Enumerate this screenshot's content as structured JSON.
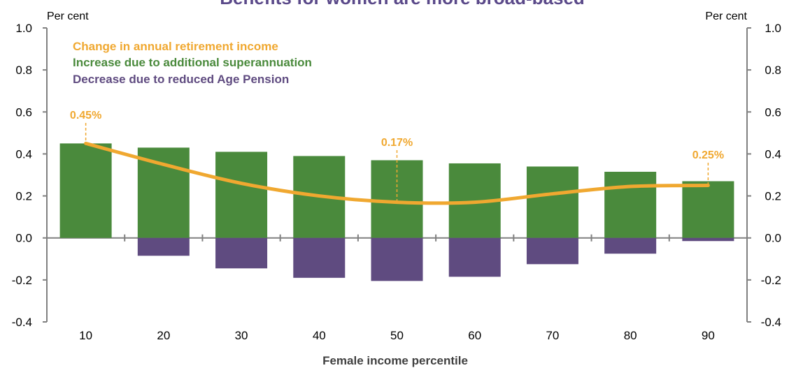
{
  "chart_data": {
    "type": "bar",
    "title_partial": "Benefits for women are more broad-based",
    "xlabel": "Female income percentile",
    "unit_left": "Per cent",
    "unit_right": "Per cent",
    "ylim": [
      -0.4,
      1.0
    ],
    "y_ticks": [
      "1.0",
      "0.8",
      "0.6",
      "0.4",
      "0.2",
      "0.0",
      "-0.2",
      "-0.4"
    ],
    "y_tick_values": [
      1.0,
      0.8,
      0.6,
      0.4,
      0.2,
      0.0,
      -0.2,
      -0.4
    ],
    "categories": [
      "10",
      "20",
      "30",
      "40",
      "50",
      "60",
      "70",
      "80",
      "90"
    ],
    "series": [
      {
        "name": "Change in annual retirement income",
        "kind": "line",
        "color": "#f0a830",
        "values": [
          0.45,
          0.35,
          0.26,
          0.2,
          0.17,
          0.17,
          0.21,
          0.245,
          0.25
        ]
      },
      {
        "name": "Increase due to additional superannuation",
        "kind": "bar",
        "color": "#4a8a3c",
        "values": [
          0.45,
          0.43,
          0.41,
          0.39,
          0.37,
          0.355,
          0.34,
          0.315,
          0.27
        ]
      },
      {
        "name": "Decrease due to reduced Age Pension",
        "kind": "bar",
        "color": "#5f4b80",
        "values": [
          0.0,
          -0.085,
          -0.145,
          -0.19,
          -0.205,
          -0.185,
          -0.125,
          -0.075,
          -0.015
        ]
      }
    ],
    "annotations": [
      {
        "category": "10",
        "text": "0.45%"
      },
      {
        "category": "50",
        "text": "0.17%"
      },
      {
        "category": "90",
        "text": "0.25%"
      }
    ],
    "legend_position": "top-left",
    "grid": false
  }
}
